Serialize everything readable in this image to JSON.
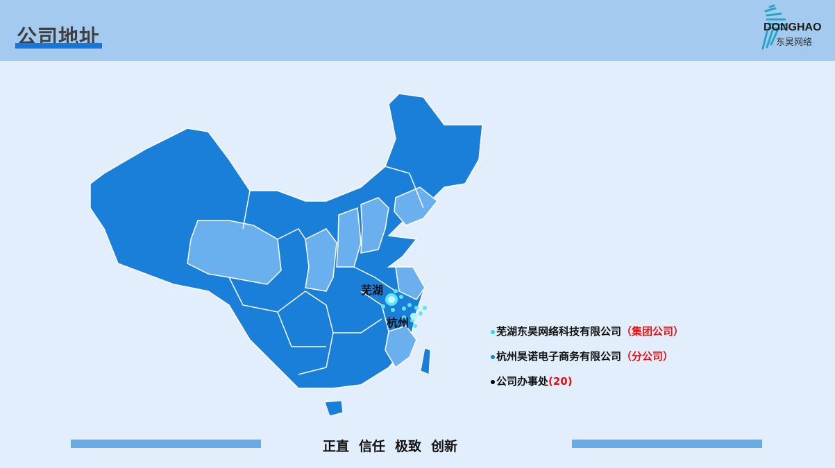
{
  "header": {
    "title": "公司地址",
    "logo": {
      "en": "DONGHAO",
      "cn": "东昊网络"
    }
  },
  "map": {
    "cities": [
      {
        "name": "芜湖"
      },
      {
        "name": "杭州"
      }
    ],
    "colors": {
      "province": "#1a7fd8",
      "highlight": "#6ab0ee",
      "marker": "#5ee6f5"
    }
  },
  "legend": [
    {
      "name": "芜湖东昊网络科技有限公司",
      "tag": "（集团公司）",
      "dot_color": "#33d6f0"
    },
    {
      "name": "杭州昊诺电子商务有限公司",
      "tag": "（分公司）",
      "dot_color": "#1a7fd8"
    },
    {
      "name": "公司办事处",
      "tag": "(20)",
      "dot_color": "#000000"
    }
  ],
  "footer": {
    "slogan": [
      "正直",
      "信任",
      "极致",
      "创新"
    ]
  }
}
